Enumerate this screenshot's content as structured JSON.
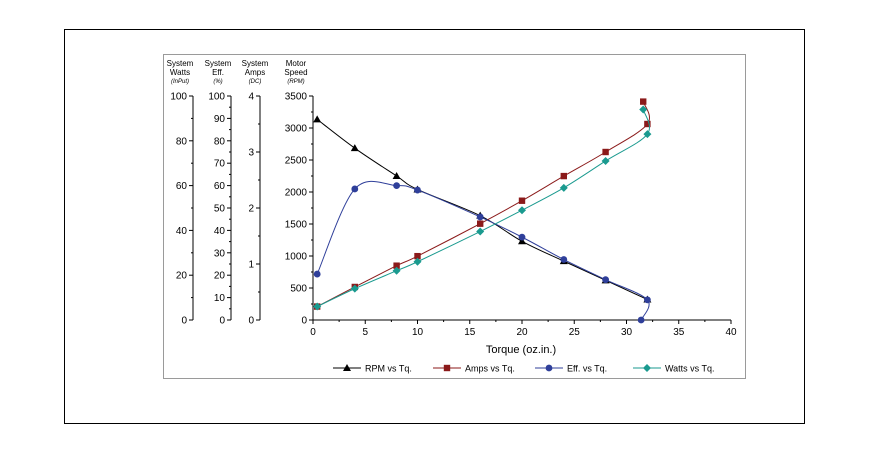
{
  "chart_data": {
    "type": "line",
    "xlabel": "Torque (oz.in.)",
    "xlim": [
      0,
      40
    ],
    "xticks": [
      "0",
      "5",
      "10",
      "15",
      "20",
      "25",
      "30",
      "35",
      "40"
    ],
    "axes": [
      {
        "key": "watts",
        "title1": "System",
        "title2": "Watts",
        "unit": "(InPut)",
        "ylim": [
          0,
          100
        ],
        "ticks": [
          "0",
          "20",
          "40",
          "60",
          "80",
          "100"
        ]
      },
      {
        "key": "eff",
        "title1": "System",
        "title2": "Eff.",
        "unit": "(%)",
        "ylim": [
          0,
          100
        ],
        "ticks": [
          "0",
          "10",
          "20",
          "30",
          "40",
          "50",
          "60",
          "70",
          "80",
          "90",
          "100"
        ]
      },
      {
        "key": "amps",
        "title1": "System",
        "title2": "Amps",
        "unit": "(DC)",
        "ylim": [
          0,
          4
        ],
        "ticks": [
          "0",
          "1",
          "2",
          "3",
          "4"
        ]
      },
      {
        "key": "rpm",
        "title1": "Motor",
        "title2": "Speed",
        "unit": "(RPM)",
        "ylim": [
          0,
          3500
        ],
        "ticks": [
          "0",
          "500",
          "1000",
          "1500",
          "2000",
          "2500",
          "3000",
          "3500"
        ]
      }
    ],
    "series": [
      {
        "name": "RPM vs Tq.",
        "axis": "rpm",
        "marker": "triangle",
        "color": "#000000",
        "x": [
          0.4,
          4,
          8,
          10,
          16,
          20,
          24,
          28,
          32
        ],
        "y": [
          3135,
          2685,
          2250,
          2040,
          1630,
          1230,
          920,
          620,
          320
        ]
      },
      {
        "name": "Amps vs Tq.",
        "axis": "amps",
        "marker": "square",
        "color": "#8b1a1a",
        "x": [
          0.4,
          4,
          8,
          10,
          16,
          20,
          24,
          28,
          32,
          31.6
        ],
        "y": [
          0.24,
          0.59,
          0.97,
          1.14,
          1.72,
          2.13,
          2.57,
          3.0,
          3.5,
          3.9
        ]
      },
      {
        "name": "Eff. vs Tq.",
        "axis": "eff",
        "marker": "circle",
        "color": "#2f3f9a",
        "x": [
          0.4,
          4,
          8,
          10,
          16,
          20,
          24,
          28,
          32,
          31.4
        ],
        "y": [
          20.5,
          58.5,
          60,
          58,
          46,
          37,
          27,
          18,
          9,
          0
        ]
      },
      {
        "name": "Watts vs Tq.",
        "axis": "watts",
        "marker": "diamond",
        "color": "#1a9a8f",
        "x": [
          0.4,
          4,
          8,
          10,
          16,
          20,
          24,
          28,
          32,
          31.6
        ],
        "y": [
          6,
          14,
          22,
          26,
          39.5,
          49,
          59,
          71,
          83,
          94
        ]
      }
    ]
  }
}
